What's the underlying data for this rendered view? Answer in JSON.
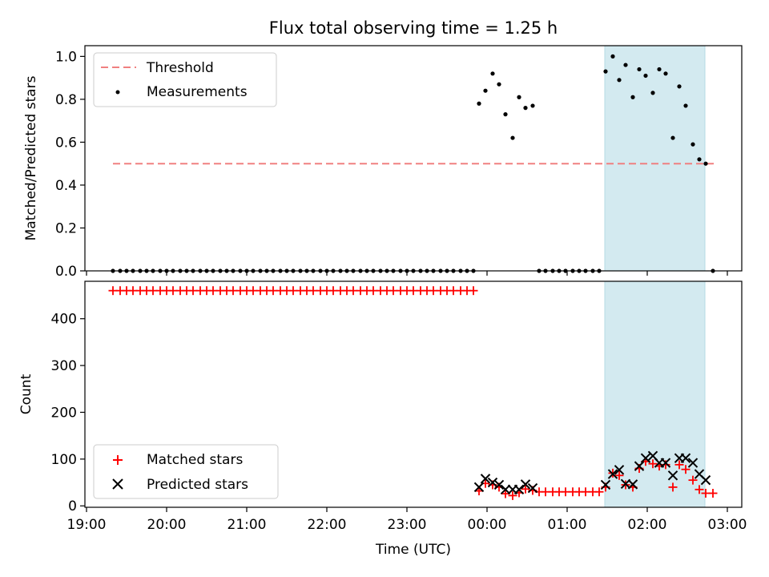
{
  "chart_data": {
    "title": "Flux total observing time = 1.25 h",
    "xlabel": "Time (UTC)",
    "x_unit": "hours",
    "x_ticks": [
      {
        "value": 19,
        "label": "19:00"
      },
      {
        "value": 20,
        "label": "20:00"
      },
      {
        "value": 21,
        "label": "21:00"
      },
      {
        "value": 22,
        "label": "22:00"
      },
      {
        "value": 23,
        "label": "23:00"
      },
      {
        "value": 24,
        "label": "00:00"
      },
      {
        "value": 25,
        "label": "01:00"
      },
      {
        "value": 26,
        "label": "02:00"
      },
      {
        "value": 27,
        "label": "03:00"
      }
    ],
    "xlim": [
      18.98,
      27.18
    ],
    "highlight_span": [
      25.47,
      26.72
    ],
    "highlight_color": "#d3eaf0",
    "panels": [
      {
        "type": "scatter",
        "ylabel": "Matched/Predicted stars",
        "ylim": [
          0,
          1.05
        ],
        "y_ticks": [
          {
            "value": 0.0,
            "label": "0.0"
          },
          {
            "value": 0.2,
            "label": "0.2"
          },
          {
            "value": 0.4,
            "label": "0.4"
          },
          {
            "value": 0.6,
            "label": "0.6"
          },
          {
            "value": 0.8,
            "label": "0.8"
          },
          {
            "value": 1.0,
            "label": "1.0"
          }
        ],
        "legend": {
          "position": "upper-left",
          "entries": [
            "Threshold",
            "Measurements"
          ]
        },
        "threshold": {
          "name": "Threshold",
          "y": 0.5,
          "x_range": [
            19.33,
            26.83
          ],
          "color": "#f08080"
        },
        "measurements": {
          "name": "Measurements",
          "color": "#000000",
          "points": [
            [
              19.33,
              0
            ],
            [
              19.42,
              0
            ],
            [
              19.5,
              0
            ],
            [
              19.58,
              0
            ],
            [
              19.67,
              0
            ],
            [
              19.75,
              0
            ],
            [
              19.83,
              0
            ],
            [
              19.92,
              0
            ],
            [
              20.0,
              0
            ],
            [
              20.08,
              0
            ],
            [
              20.17,
              0
            ],
            [
              20.25,
              0
            ],
            [
              20.33,
              0
            ],
            [
              20.42,
              0
            ],
            [
              20.5,
              0
            ],
            [
              20.58,
              0
            ],
            [
              20.67,
              0
            ],
            [
              20.75,
              0
            ],
            [
              20.83,
              0
            ],
            [
              20.92,
              0
            ],
            [
              21.0,
              0
            ],
            [
              21.08,
              0
            ],
            [
              21.17,
              0
            ],
            [
              21.25,
              0
            ],
            [
              21.33,
              0
            ],
            [
              21.42,
              0
            ],
            [
              21.5,
              0
            ],
            [
              21.58,
              0
            ],
            [
              21.67,
              0
            ],
            [
              21.75,
              0
            ],
            [
              21.83,
              0
            ],
            [
              21.92,
              0
            ],
            [
              22.0,
              0
            ],
            [
              22.08,
              0
            ],
            [
              22.17,
              0
            ],
            [
              22.25,
              0
            ],
            [
              22.33,
              0
            ],
            [
              22.42,
              0
            ],
            [
              22.5,
              0
            ],
            [
              22.58,
              0
            ],
            [
              22.67,
              0
            ],
            [
              22.75,
              0
            ],
            [
              22.83,
              0
            ],
            [
              22.92,
              0
            ],
            [
              23.0,
              0
            ],
            [
              23.08,
              0
            ],
            [
              23.17,
              0
            ],
            [
              23.25,
              0
            ],
            [
              23.33,
              0
            ],
            [
              23.42,
              0
            ],
            [
              23.5,
              0
            ],
            [
              23.58,
              0
            ],
            [
              23.67,
              0
            ],
            [
              23.75,
              0
            ],
            [
              23.83,
              0
            ],
            [
              23.9,
              0.78
            ],
            [
              23.98,
              0.84
            ],
            [
              24.07,
              0.92
            ],
            [
              24.15,
              0.87
            ],
            [
              24.23,
              0.73
            ],
            [
              24.32,
              0.62
            ],
            [
              24.4,
              0.81
            ],
            [
              24.48,
              0.76
            ],
            [
              24.57,
              0.77
            ],
            [
              24.65,
              0
            ],
            [
              24.73,
              0
            ],
            [
              24.82,
              0
            ],
            [
              24.9,
              0
            ],
            [
              24.98,
              0
            ],
            [
              25.07,
              0
            ],
            [
              25.15,
              0
            ],
            [
              25.23,
              0
            ],
            [
              25.32,
              0
            ],
            [
              25.4,
              0
            ],
            [
              25.48,
              0.93
            ],
            [
              25.57,
              1.0
            ],
            [
              25.65,
              0.89
            ],
            [
              25.73,
              0.96
            ],
            [
              25.82,
              0.81
            ],
            [
              25.9,
              0.94
            ],
            [
              25.98,
              0.91
            ],
            [
              26.07,
              0.83
            ],
            [
              26.15,
              0.94
            ],
            [
              26.23,
              0.92
            ],
            [
              26.32,
              0.62
            ],
            [
              26.4,
              0.86
            ],
            [
              26.48,
              0.77
            ],
            [
              26.57,
              0.59
            ],
            [
              26.65,
              0.52
            ],
            [
              26.73,
              0.5
            ],
            [
              26.82,
              0
            ]
          ]
        }
      },
      {
        "type": "scatter",
        "ylabel": "Count",
        "ylim": [
          -3,
          480
        ],
        "y_ticks": [
          {
            "value": 0,
            "label": "0"
          },
          {
            "value": 100,
            "label": "100"
          },
          {
            "value": 200,
            "label": "200"
          },
          {
            "value": 300,
            "label": "300"
          },
          {
            "value": 400,
            "label": "400"
          }
        ],
        "legend": {
          "position": "lower-left",
          "entries": [
            "Matched stars",
            "Predicted stars"
          ]
        },
        "series": [
          {
            "name": "Matched stars",
            "marker": "plus",
            "color": "#ff0000",
            "points": [
              [
                19.33,
                460
              ],
              [
                19.42,
                460
              ],
              [
                19.5,
                460
              ],
              [
                19.58,
                460
              ],
              [
                19.67,
                460
              ],
              [
                19.75,
                460
              ],
              [
                19.83,
                460
              ],
              [
                19.92,
                460
              ],
              [
                20.0,
                460
              ],
              [
                20.08,
                460
              ],
              [
                20.17,
                460
              ],
              [
                20.25,
                460
              ],
              [
                20.33,
                460
              ],
              [
                20.42,
                460
              ],
              [
                20.5,
                460
              ],
              [
                20.58,
                460
              ],
              [
                20.67,
                460
              ],
              [
                20.75,
                460
              ],
              [
                20.83,
                460
              ],
              [
                20.92,
                460
              ],
              [
                21.0,
                460
              ],
              [
                21.08,
                460
              ],
              [
                21.17,
                460
              ],
              [
                21.25,
                460
              ],
              [
                21.33,
                460
              ],
              [
                21.42,
                460
              ],
              [
                21.5,
                460
              ],
              [
                21.58,
                460
              ],
              [
                21.67,
                460
              ],
              [
                21.75,
                460
              ],
              [
                21.83,
                460
              ],
              [
                21.92,
                460
              ],
              [
                22.0,
                460
              ],
              [
                22.08,
                460
              ],
              [
                22.17,
                460
              ],
              [
                22.25,
                460
              ],
              [
                22.33,
                460
              ],
              [
                22.42,
                460
              ],
              [
                22.5,
                460
              ],
              [
                22.58,
                460
              ],
              [
                22.67,
                460
              ],
              [
                22.75,
                460
              ],
              [
                22.83,
                460
              ],
              [
                22.92,
                460
              ],
              [
                23.0,
                460
              ],
              [
                23.08,
                460
              ],
              [
                23.17,
                460
              ],
              [
                23.25,
                460
              ],
              [
                23.33,
                460
              ],
              [
                23.42,
                460
              ],
              [
                23.5,
                460
              ],
              [
                23.58,
                460
              ],
              [
                23.67,
                460
              ],
              [
                23.75,
                460
              ],
              [
                23.83,
                460
              ],
              [
                23.9,
                32
              ],
              [
                23.98,
                48
              ],
              [
                24.07,
                45
              ],
              [
                24.15,
                40
              ],
              [
                24.23,
                26
              ],
              [
                24.32,
                22
              ],
              [
                24.4,
                28
              ],
              [
                24.48,
                36
              ],
              [
                24.57,
                33
              ],
              [
                24.65,
                30
              ],
              [
                24.73,
                30
              ],
              [
                24.82,
                30
              ],
              [
                24.9,
                30
              ],
              [
                24.98,
                30
              ],
              [
                25.07,
                30
              ],
              [
                25.15,
                30
              ],
              [
                25.23,
                30
              ],
              [
                25.32,
                30
              ],
              [
                25.4,
                30
              ],
              [
                25.48,
                40
              ],
              [
                25.57,
                70
              ],
              [
                25.65,
                65
              ],
              [
                25.73,
                45
              ],
              [
                25.82,
                40
              ],
              [
                25.9,
                80
              ],
              [
                25.98,
                95
              ],
              [
                26.07,
                90
              ],
              [
                26.15,
                85
              ],
              [
                26.23,
                88
              ],
              [
                26.32,
                40
              ],
              [
                26.4,
                88
              ],
              [
                26.48,
                78
              ],
              [
                26.57,
                55
              ],
              [
                26.65,
                35
              ],
              [
                26.73,
                27
              ],
              [
                26.82,
                27
              ]
            ]
          },
          {
            "name": "Predicted stars",
            "marker": "x",
            "color": "#000000",
            "points": [
              [
                23.9,
                40
              ],
              [
                23.98,
                58
              ],
              [
                24.07,
                50
              ],
              [
                24.15,
                45
              ],
              [
                24.23,
                35
              ],
              [
                24.32,
                35
              ],
              [
                24.4,
                35
              ],
              [
                24.48,
                46
              ],
              [
                24.57,
                38
              ],
              [
                25.48,
                45
              ],
              [
                25.57,
                68
              ],
              [
                25.65,
                77
              ],
              [
                25.73,
                47
              ],
              [
                25.82,
                46
              ],
              [
                25.9,
                85
              ],
              [
                25.98,
                102
              ],
              [
                26.07,
                107
              ],
              [
                26.15,
                92
              ],
              [
                26.23,
                92
              ],
              [
                26.32,
                65
              ],
              [
                26.4,
                102
              ],
              [
                26.48,
                102
              ],
              [
                26.57,
                92
              ],
              [
                26.65,
                68
              ],
              [
                26.73,
                55
              ]
            ]
          }
        ]
      }
    ]
  }
}
